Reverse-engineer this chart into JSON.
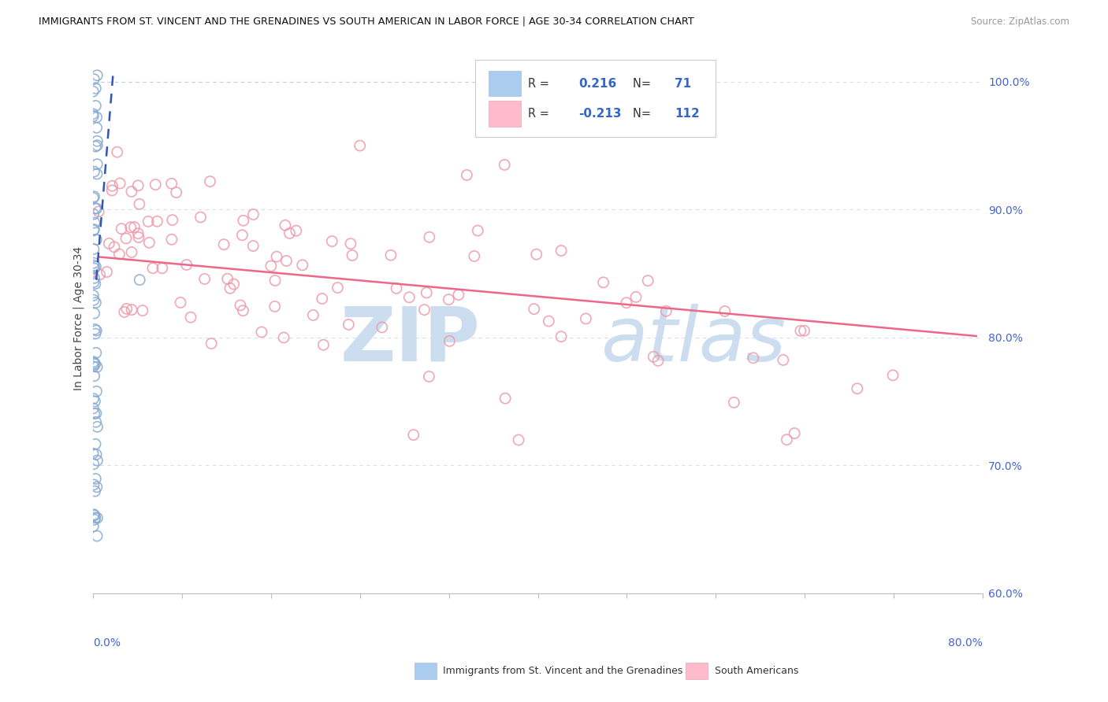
{
  "title": "IMMIGRANTS FROM ST. VINCENT AND THE GRENADINES VS SOUTH AMERICAN IN LABOR FORCE | AGE 30-34 CORRELATION CHART",
  "source": "Source: ZipAtlas.com",
  "ylabel": "In Labor Force | Age 30-34",
  "xlim": [
    0.0,
    80.0
  ],
  "ylim": [
    60.0,
    103.0
  ],
  "blue_face_color": "#aaccee",
  "blue_edge_color": "#88aad0",
  "pink_face_color": "#ffbbcc",
  "pink_edge_color": "#ee99aa",
  "blue_line_color": "#3355bb",
  "pink_line_color": "#ee6688",
  "watermark_color": "#ccddf0",
  "r_blue": "0.216",
  "n_blue": "71",
  "r_pink": "-0.213",
  "n_pink": "112",
  "legend_blue_label": "Immigrants from St. Vincent and the Grenadines",
  "legend_pink_label": "South Americans",
  "ytick_vals": [
    60,
    70,
    80,
    90,
    100
  ],
  "ytick_labels": [
    "60.0%",
    "70.0%",
    "80.0%",
    "90.0%",
    "100.0%"
  ],
  "xtick_left": "0.0%",
  "xtick_right": "80.0%",
  "blue_seed": 42,
  "pink_seed": 99,
  "n_blue_pts": 71,
  "n_pink_pts": 112,
  "pink_trend_x0": 0.5,
  "pink_trend_y0": 86.3,
  "pink_trend_x1": 79.5,
  "pink_trend_y1": 80.1,
  "blue_trend_x0": 0.3,
  "blue_trend_y0": 84.5,
  "blue_trend_x1": 1.8,
  "blue_trend_y1": 100.5
}
